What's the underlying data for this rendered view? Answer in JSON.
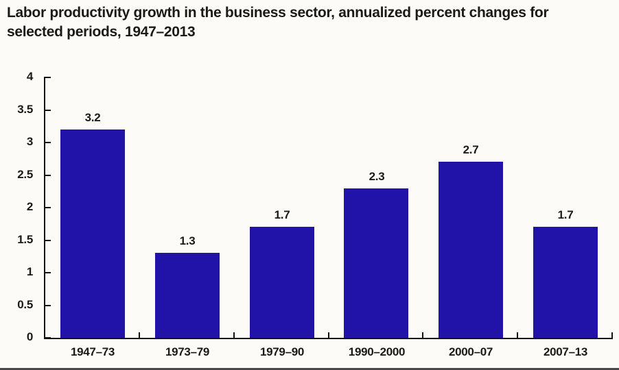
{
  "header": {
    "title_lines": [
      "Labor productivity growth in the business sector, annualized percent changes for",
      "selected periods, 1947–2013"
    ]
  },
  "colors": {
    "bar": "#2213a8",
    "text": "#1c1a18",
    "axis": "#141414",
    "background": "#fcfbf8",
    "bottom_rule": "#4a4a4a"
  },
  "chart_data": {
    "type": "bar",
    "title": "Labor productivity growth in the business sector, annualized percent changes for selected periods, 1947–2013",
    "categories": [
      "1947–73",
      "1973–79",
      "1979–90",
      "1990–2000",
      "2000–07",
      "2007–13"
    ],
    "values": [
      3.2,
      1.3,
      1.7,
      2.3,
      2.7,
      1.7
    ],
    "data_labels": [
      "3.2",
      "1.3",
      "1.7",
      "2.3",
      "2.7",
      "1.7"
    ],
    "xlabel": "",
    "ylabel": "",
    "ylim": [
      0,
      4
    ],
    "ytick_step": 0.5,
    "ytick_labels": [
      "0",
      "0.5",
      "1",
      "1.5",
      "2",
      "2.5",
      "3",
      "3.5",
      "4"
    ],
    "grid": false,
    "legend_position": "none",
    "data_labels_shown": true
  }
}
